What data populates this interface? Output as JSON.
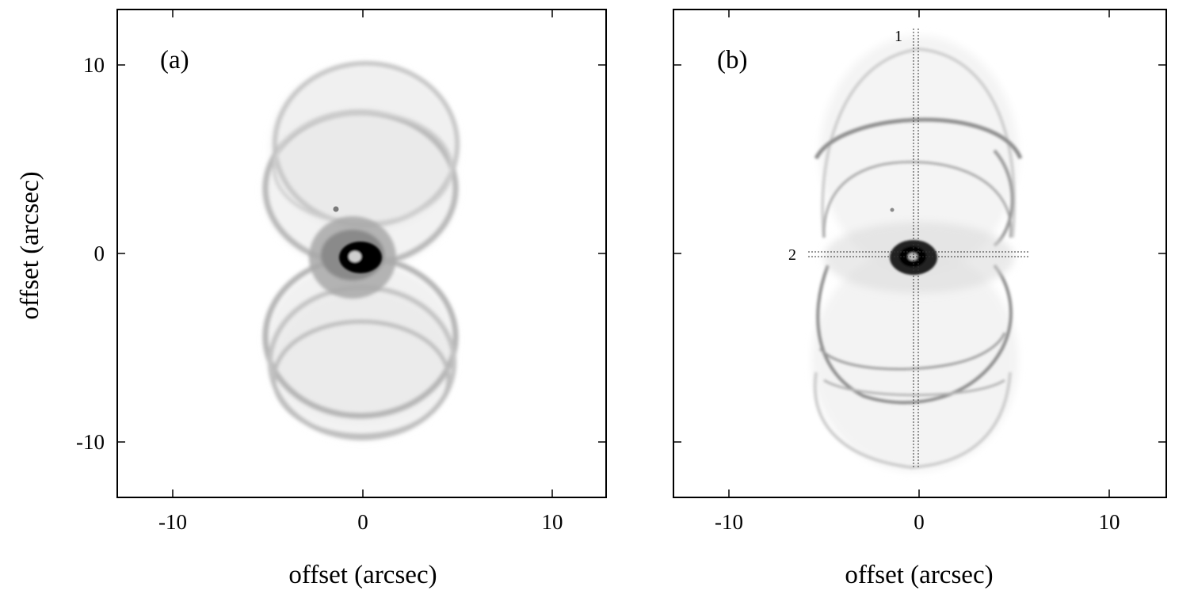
{
  "figure": {
    "panels": [
      {
        "id": "a",
        "label": "(a)",
        "x_ticks": [
          "-10",
          "0",
          "10"
        ],
        "y_ticks": [
          "10",
          "0",
          "-10"
        ],
        "xlabel": "offset (arcsec)",
        "ylabel": "offset (arcsec)"
      },
      {
        "id": "b",
        "label": "(b)",
        "x_ticks": [
          "-10",
          "0",
          "10"
        ],
        "xlabel": "offset (arcsec)",
        "slits": [
          {
            "label": "1",
            "orientation": "vertical"
          },
          {
            "label": "2",
            "orientation": "horizontal"
          }
        ]
      }
    ]
  },
  "chart_data": [
    {
      "type": "image",
      "panel": "a",
      "xlim": [
        -13,
        13
      ],
      "ylim": [
        -13,
        13
      ],
      "x_tick_values": [
        -10,
        0,
        10
      ],
      "y_tick_values": [
        10,
        0,
        -10
      ]
    },
    {
      "type": "image",
      "panel": "b",
      "xlim": [
        -13,
        13
      ],
      "ylim": [
        -13,
        13
      ],
      "x_tick_values": [
        -10,
        0,
        10
      ],
      "y_tick_values": [
        10,
        0,
        -10
      ]
    }
  ]
}
